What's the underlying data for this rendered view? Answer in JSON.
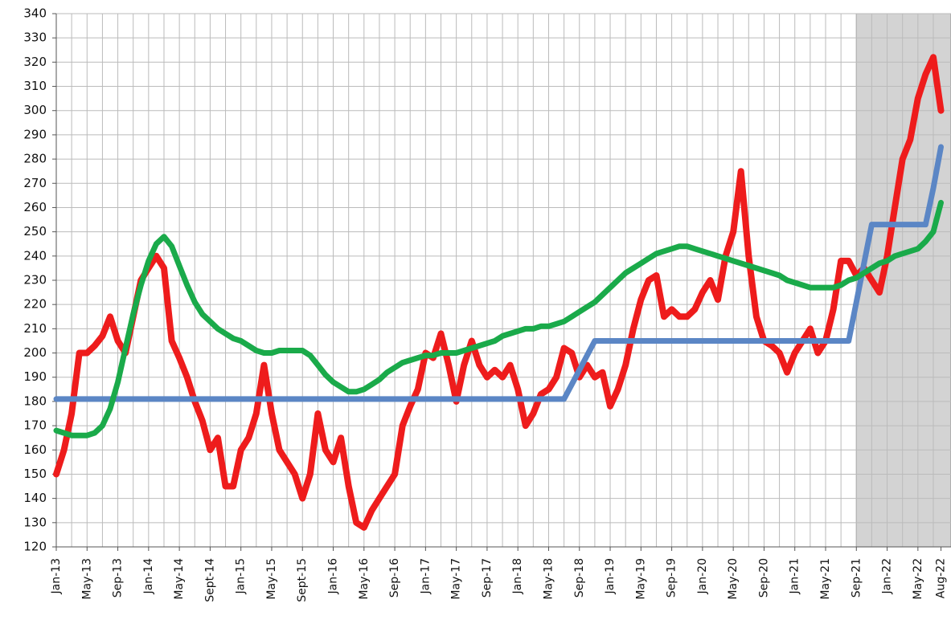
{
  "chart_data": {
    "type": "line",
    "categories": [
      "Jan-13",
      null,
      null,
      null,
      "May-13",
      null,
      null,
      null,
      "Sep-13",
      null,
      null,
      null,
      "Jan-14",
      null,
      null,
      null,
      "May-14",
      null,
      null,
      null,
      "Sept-14",
      null,
      null,
      null,
      "Jan-15",
      null,
      null,
      null,
      "May-15",
      null,
      null,
      null,
      "Sept-15",
      null,
      null,
      null,
      "Jan-16",
      null,
      null,
      null,
      "May-16",
      null,
      null,
      null,
      "Sep-16",
      null,
      null,
      null,
      "Jan-17",
      null,
      null,
      null,
      "May-17",
      null,
      null,
      null,
      "Sep-17",
      null,
      null,
      null,
      "Jan-18",
      null,
      null,
      null,
      "May-18",
      null,
      null,
      null,
      "Sep-18",
      null,
      null,
      null,
      "Jan-19",
      null,
      null,
      null,
      "May-19",
      null,
      null,
      null,
      "Sep-19",
      null,
      null,
      null,
      "Jan-20",
      null,
      null,
      null,
      "May-20",
      null,
      null,
      null,
      "Sep-20",
      null,
      null,
      null,
      "Jan-21",
      null,
      null,
      null,
      "May-21",
      null,
      null,
      null,
      "Sep-21",
      null,
      null,
      null,
      "Jan-22",
      null,
      null,
      null,
      "May-22",
      null,
      null,
      "Aug-22"
    ],
    "series": [
      {
        "color": "#ee1c1c",
        "values": [
          150,
          160,
          175,
          200,
          200,
          203,
          207,
          215,
          205,
          200,
          215,
          230,
          235,
          240,
          235,
          205,
          198,
          190,
          180,
          172,
          160,
          165,
          145,
          145,
          160,
          165,
          175,
          195,
          175,
          160,
          155,
          150,
          140,
          150,
          175,
          160,
          155,
          165,
          145,
          130,
          128,
          135,
          140,
          145,
          150,
          170,
          178,
          185,
          200,
          198,
          208,
          195,
          180,
          195,
          205,
          195,
          190,
          193,
          190,
          195,
          185,
          170,
          175,
          183,
          185,
          190,
          202,
          200,
          190,
          195,
          190,
          192,
          178,
          185,
          195,
          210,
          222,
          230,
          232,
          215,
          218,
          215,
          215,
          218,
          225,
          230,
          222,
          240,
          250,
          275,
          240,
          215,
          205,
          203,
          200,
          192,
          200,
          205,
          210,
          200,
          205,
          218,
          238,
          238,
          232,
          235,
          230,
          225,
          240,
          260,
          280,
          288,
          305,
          315,
          322,
          300
        ]
      },
      {
        "color": "#5b86c5",
        "values": [
          181,
          181,
          181,
          181,
          181,
          181,
          181,
          181,
          181,
          181,
          181,
          181,
          181,
          181,
          181,
          181,
          181,
          181,
          181,
          181,
          181,
          181,
          181,
          181,
          181,
          181,
          181,
          181,
          181,
          181,
          181,
          181,
          181,
          181,
          181,
          181,
          181,
          181,
          181,
          181,
          181,
          181,
          181,
          181,
          181,
          181,
          181,
          181,
          181,
          181,
          181,
          181,
          181,
          181,
          181,
          181,
          181,
          181,
          181,
          181,
          181,
          181,
          181,
          181,
          181,
          181,
          181,
          187,
          193,
          199,
          205,
          205,
          205,
          205,
          205,
          205,
          205,
          205,
          205,
          205,
          205,
          205,
          205,
          205,
          205,
          205,
          205,
          205,
          205,
          205,
          205,
          205,
          205,
          205,
          205,
          205,
          205,
          205,
          205,
          205,
          205,
          205,
          205,
          205,
          221,
          237,
          253,
          253,
          253,
          253,
          253,
          253,
          253,
          253,
          268,
          285
        ]
      },
      {
        "color": "#1aaa4a",
        "values": [
          168,
          167,
          166,
          166,
          166,
          167,
          170,
          177,
          188,
          202,
          216,
          228,
          238,
          245,
          248,
          244,
          236,
          228,
          221,
          216,
          213,
          210,
          208,
          206,
          205,
          203,
          201,
          200,
          200,
          201,
          201,
          201,
          201,
          199,
          195,
          191,
          188,
          186,
          184,
          184,
          185,
          187,
          189,
          192,
          194,
          196,
          197,
          198,
          199,
          199,
          200,
          200,
          200,
          201,
          202,
          203,
          204,
          205,
          207,
          208,
          209,
          210,
          210,
          211,
          211,
          212,
          213,
          215,
          217,
          219,
          221,
          224,
          227,
          230,
          233,
          235,
          237,
          239,
          241,
          242,
          243,
          244,
          244,
          243,
          242,
          241,
          240,
          239,
          238,
          237,
          236,
          235,
          234,
          233,
          232,
          230,
          229,
          228,
          227,
          227,
          227,
          227,
          228,
          230,
          231,
          233,
          235,
          237,
          238,
          240,
          241,
          242,
          243,
          246,
          250,
          262
        ]
      }
    ],
    "ylim": [
      120,
      340
    ],
    "yticks": [
      120,
      130,
      140,
      150,
      160,
      170,
      180,
      190,
      200,
      210,
      220,
      230,
      240,
      250,
      260,
      270,
      280,
      290,
      300,
      310,
      320,
      330,
      340
    ],
    "grid": true
  }
}
